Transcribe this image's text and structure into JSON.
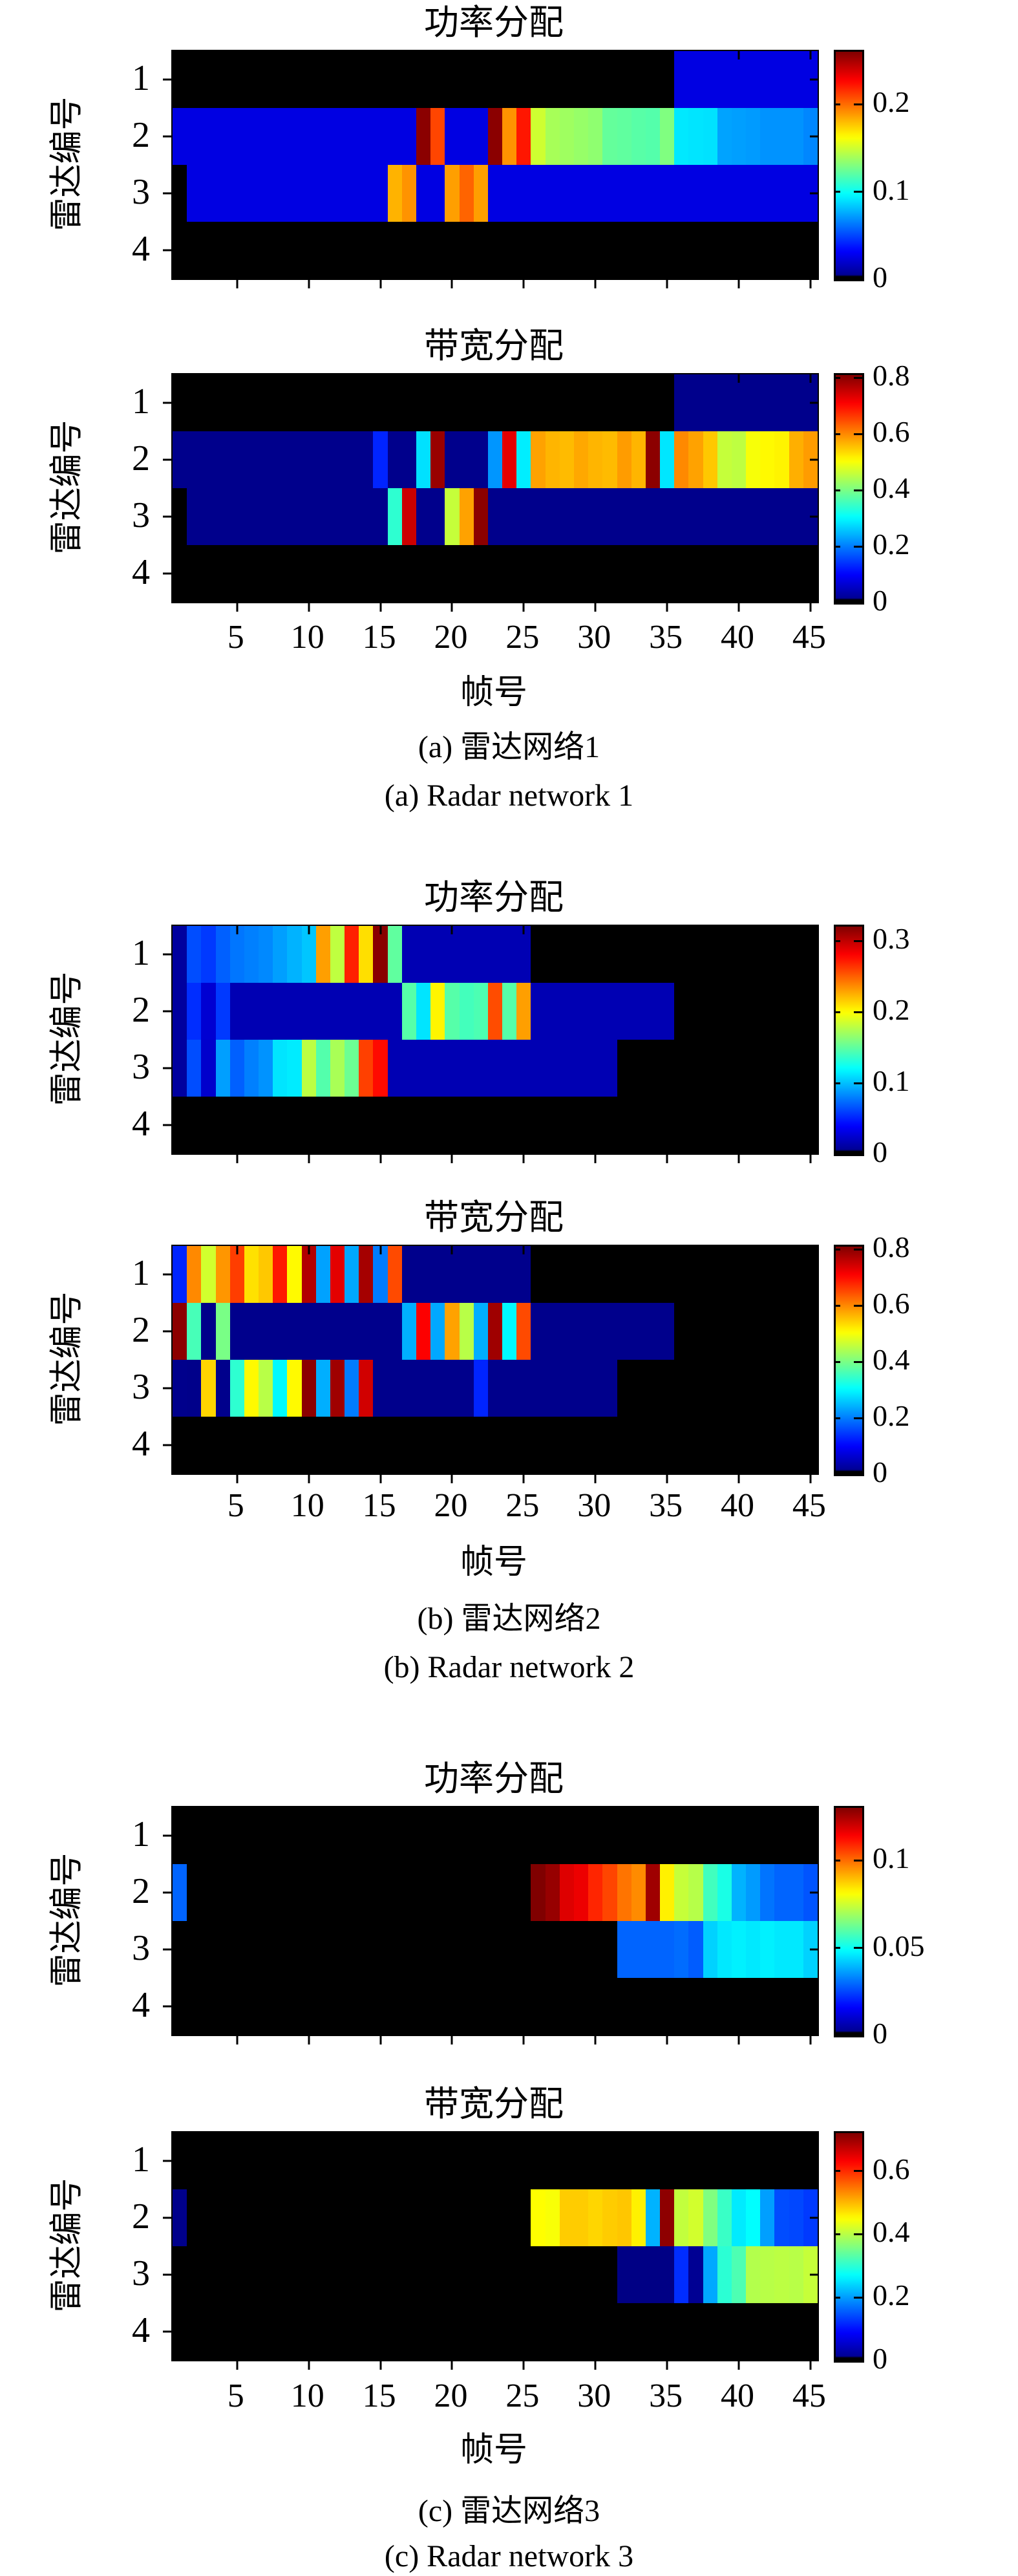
{
  "figure": {
    "ylabel": "雷达编号",
    "xlabel": "帧号",
    "ytick_labels": [
      "1",
      "2",
      "3",
      "4"
    ],
    "xtick_labels": [
      "5",
      "10",
      "15",
      "20",
      "25",
      "30",
      "35",
      "40",
      "45"
    ],
    "groups": [
      {
        "caption_zh": "(a) 雷达网络1",
        "caption_en": "(a) Radar network 1"
      },
      {
        "caption_zh": "(b) 雷达网络2",
        "caption_en": "(b) Radar network 2"
      },
      {
        "caption_zh": "(c) 雷达网络3",
        "caption_en": "(c) Radar network 3"
      }
    ]
  },
  "chart_data": [
    {
      "type": "heatmap",
      "group": "a",
      "title": "功率分配",
      "xlabel": "帧号",
      "ylabel": "雷达编号",
      "x_range": [
        1,
        45
      ],
      "y_categories": [
        "1",
        "2",
        "3",
        "4"
      ],
      "colormap": "jet-black-zero",
      "vmax": 0.26,
      "colorbar_ticks": [
        0,
        0.1,
        0.2
      ],
      "values": [
        [
          0,
          0,
          0,
          0,
          0,
          0,
          0,
          0,
          0,
          0,
          0,
          0,
          0,
          0,
          0,
          0,
          0,
          0,
          0,
          0,
          0,
          0,
          0,
          0,
          0,
          0,
          0,
          0,
          0,
          0,
          0,
          0,
          0,
          0,
          0,
          0.025,
          0.025,
          0.025,
          0.025,
          0.025,
          0.025,
          0.025,
          0.025,
          0.025,
          0.025
        ],
        [
          0.025,
          0.025,
          0.025,
          0.025,
          0.025,
          0.025,
          0.025,
          0.025,
          0.025,
          0.025,
          0.025,
          0.025,
          0.025,
          0.025,
          0.025,
          0.025,
          0.025,
          0.257,
          0.21,
          0.025,
          0.025,
          0.025,
          0.257,
          0.19,
          0.222,
          0.15,
          0.14,
          0.138,
          0.136,
          0.134,
          0.123,
          0.122,
          0.12,
          0.119,
          0.13,
          0.092,
          0.091,
          0.09,
          0.074,
          0.073,
          0.072,
          0.07,
          0.07,
          0.07,
          0.067
        ],
        [
          0,
          0.025,
          0.025,
          0.025,
          0.025,
          0.025,
          0.025,
          0.025,
          0.025,
          0.025,
          0.025,
          0.025,
          0.025,
          0.025,
          0.025,
          0.182,
          0.19,
          0.025,
          0.025,
          0.187,
          0.202,
          0.187,
          0.025,
          0.025,
          0.025,
          0.025,
          0.025,
          0.025,
          0.025,
          0.025,
          0.025,
          0.025,
          0.025,
          0.025,
          0.025,
          0.025,
          0.025,
          0.025,
          0.025,
          0.025,
          0.025,
          0.025,
          0.025,
          0.025,
          0.025
        ],
        [
          0,
          0,
          0,
          0,
          0,
          0,
          0,
          0,
          0,
          0,
          0,
          0,
          0,
          0,
          0,
          0,
          0,
          0,
          0,
          0,
          0,
          0,
          0,
          0,
          0,
          0,
          0,
          0,
          0,
          0,
          0,
          0,
          0,
          0,
          0,
          0,
          0,
          0,
          0,
          0,
          0,
          0,
          0,
          0,
          0
        ]
      ]
    },
    {
      "type": "heatmap",
      "group": "a",
      "title": "带宽分配",
      "xlabel": "帧号",
      "ylabel": "雷达编号",
      "x_range": [
        1,
        45
      ],
      "y_categories": [
        "1",
        "2",
        "3",
        "4"
      ],
      "colormap": "jet-black-zero",
      "vmax": 0.81,
      "colorbar_ticks": [
        0,
        0.2,
        0.4,
        0.6,
        0.8
      ],
      "values": [
        [
          0,
          0,
          0,
          0,
          0,
          0,
          0,
          0,
          0,
          0,
          0,
          0,
          0,
          0,
          0,
          0,
          0,
          0,
          0,
          0,
          0,
          0,
          0,
          0,
          0,
          0,
          0,
          0,
          0,
          0,
          0,
          0,
          0,
          0,
          0,
          0.01,
          0.01,
          0.01,
          0.01,
          0.01,
          0.01,
          0.01,
          0.01,
          0.01,
          0.01
        ],
        [
          0.01,
          0.01,
          0.01,
          0.01,
          0.01,
          0.01,
          0.01,
          0.01,
          0.01,
          0.01,
          0.01,
          0.01,
          0.01,
          0.01,
          0.13,
          0.01,
          0.01,
          0.28,
          0.79,
          0.01,
          0.01,
          0.01,
          0.22,
          0.73,
          0.29,
          0.58,
          0.565,
          0.56,
          0.575,
          0.565,
          0.56,
          0.585,
          0.565,
          0.8,
          0.285,
          0.6,
          0.58,
          0.55,
          0.46,
          0.455,
          0.5,
          0.51,
          0.515,
          0.57,
          0.585
        ],
        [
          0,
          0.01,
          0.01,
          0.01,
          0.01,
          0.01,
          0.01,
          0.01,
          0.01,
          0.01,
          0.01,
          0.01,
          0.01,
          0.01,
          0.01,
          0.34,
          0.75,
          0.01,
          0.01,
          0.46,
          0.58,
          0.8,
          0.01,
          0.01,
          0.01,
          0.01,
          0.01,
          0.01,
          0.01,
          0.01,
          0.01,
          0.01,
          0.01,
          0.01,
          0.01,
          0.01,
          0.01,
          0.01,
          0.01,
          0.01,
          0.01,
          0.01,
          0.01,
          0.01,
          0.01
        ],
        [
          0,
          0,
          0,
          0,
          0,
          0,
          0,
          0,
          0,
          0,
          0,
          0,
          0,
          0,
          0,
          0,
          0,
          0,
          0,
          0,
          0,
          0,
          0,
          0,
          0,
          0,
          0,
          0,
          0,
          0,
          0,
          0,
          0,
          0,
          0,
          0,
          0,
          0,
          0,
          0,
          0,
          0,
          0,
          0,
          0
        ]
      ]
    },
    {
      "type": "heatmap",
      "group": "b",
      "title": "功率分配",
      "xlabel": "帧号",
      "ylabel": "雷达编号",
      "x_range": [
        1,
        45
      ],
      "y_categories": [
        "1",
        "2",
        "3",
        "4"
      ],
      "colormap": "jet-black-zero",
      "vmax": 0.32,
      "colorbar_ticks": [
        0,
        0.1,
        0.2,
        0.3
      ],
      "values": [
        [
          0.01,
          0.064,
          0.058,
          0.07,
          0.077,
          0.08,
          0.083,
          0.09,
          0.096,
          0.102,
          0.23,
          0.18,
          0.27,
          0.21,
          0.317,
          0.15,
          0.016,
          0.016,
          0.016,
          0.016,
          0.016,
          0.016,
          0.016,
          0.016,
          0.016,
          0,
          0,
          0,
          0,
          0,
          0,
          0,
          0,
          0,
          0,
          0,
          0,
          0,
          0,
          0,
          0,
          0,
          0,
          0,
          0
        ],
        [
          0.01,
          0.054,
          0.026,
          0.058,
          0.016,
          0.016,
          0.016,
          0.016,
          0.016,
          0.016,
          0.016,
          0.016,
          0.016,
          0.016,
          0.016,
          0.016,
          0.147,
          0.112,
          0.203,
          0.147,
          0.141,
          0.144,
          0.256,
          0.147,
          0.23,
          0.016,
          0.016,
          0.016,
          0.016,
          0.016,
          0.016,
          0.016,
          0.016,
          0.016,
          0.016,
          0,
          0,
          0,
          0,
          0,
          0,
          0,
          0,
          0,
          0
        ],
        [
          0.01,
          0.064,
          0.024,
          0.09,
          0.07,
          0.08,
          0.086,
          0.112,
          0.114,
          0.179,
          0.146,
          0.173,
          0.154,
          0.26,
          0.277,
          0.016,
          0.016,
          0.016,
          0.016,
          0.016,
          0.016,
          0.016,
          0.016,
          0.016,
          0.016,
          0.016,
          0.016,
          0.016,
          0.016,
          0.016,
          0.016,
          0,
          0,
          0,
          0,
          0,
          0,
          0,
          0,
          0,
          0,
          0,
          0,
          0,
          0
        ],
        [
          0,
          0,
          0,
          0,
          0,
          0,
          0,
          0,
          0,
          0,
          0,
          0,
          0,
          0,
          0,
          0,
          0,
          0,
          0,
          0,
          0,
          0,
          0,
          0,
          0,
          0,
          0,
          0,
          0,
          0,
          0,
          0,
          0,
          0,
          0,
          0,
          0,
          0,
          0,
          0,
          0,
          0,
          0,
          0,
          0
        ]
      ]
    },
    {
      "type": "heatmap",
      "group": "b",
      "title": "带宽分配",
      "xlabel": "帧号",
      "ylabel": "雷达编号",
      "x_range": [
        1,
        45
      ],
      "y_categories": [
        "1",
        "2",
        "3",
        "4"
      ],
      "colormap": "jet-black-zero",
      "vmax": 0.81,
      "colorbar_ticks": [
        0,
        0.2,
        0.4,
        0.6,
        0.8
      ],
      "values": [
        [
          0.13,
          0.6,
          0.47,
          0.59,
          0.66,
          0.53,
          0.55,
          0.69,
          0.51,
          0.77,
          0.23,
          0.73,
          0.235,
          0.78,
          0.2,
          0.65,
          0.01,
          0.01,
          0.01,
          0.01,
          0.01,
          0.01,
          0.01,
          0.01,
          0.01,
          0,
          0,
          0,
          0,
          0,
          0,
          0,
          0,
          0,
          0,
          0,
          0,
          0,
          0,
          0,
          0,
          0,
          0,
          0,
          0
        ],
        [
          0.8,
          0.36,
          0.008,
          0.4,
          0.01,
          0.01,
          0.01,
          0.01,
          0.01,
          0.01,
          0.01,
          0.01,
          0.01,
          0.01,
          0.01,
          0.01,
          0.24,
          0.71,
          0.235,
          0.58,
          0.45,
          0.24,
          0.785,
          0.3,
          0.65,
          0.01,
          0.01,
          0.01,
          0.01,
          0.01,
          0.01,
          0.01,
          0.01,
          0.01,
          0.01,
          0,
          0,
          0,
          0,
          0,
          0,
          0,
          0,
          0,
          0
        ],
        [
          0.01,
          0.008,
          0.54,
          0.01,
          0.34,
          0.51,
          0.45,
          0.3,
          0.51,
          0.8,
          0.24,
          0.785,
          0.2,
          0.745,
          0.01,
          0.01,
          0.01,
          0.01,
          0.01,
          0.01,
          0.01,
          0.13,
          0.01,
          0.01,
          0.01,
          0.01,
          0.01,
          0.01,
          0.01,
          0.01,
          0.01,
          0,
          0,
          0,
          0,
          0,
          0,
          0,
          0,
          0,
          0,
          0,
          0,
          0,
          0
        ],
        [
          0,
          0,
          0,
          0,
          0,
          0,
          0,
          0,
          0,
          0,
          0,
          0,
          0,
          0,
          0,
          0,
          0,
          0,
          0,
          0,
          0,
          0,
          0,
          0,
          0,
          0,
          0,
          0,
          0,
          0,
          0,
          0,
          0,
          0,
          0,
          0,
          0,
          0,
          0,
          0,
          0,
          0,
          0,
          0,
          0
        ]
      ]
    },
    {
      "type": "heatmap",
      "group": "c",
      "title": "功率分配",
      "xlabel": "帧号",
      "ylabel": "雷达编号",
      "x_range": [
        1,
        45
      ],
      "y_categories": [
        "1",
        "2",
        "3",
        "4"
      ],
      "colormap": "jet-black-zero",
      "vmax": 0.13,
      "colorbar_ticks": [
        0,
        0.05,
        0.1
      ],
      "values": [
        [
          0,
          0,
          0,
          0,
          0,
          0,
          0,
          0,
          0,
          0,
          0,
          0,
          0,
          0,
          0,
          0,
          0,
          0,
          0,
          0,
          0,
          0,
          0,
          0,
          0,
          0,
          0,
          0,
          0,
          0,
          0,
          0,
          0,
          0,
          0,
          0,
          0,
          0,
          0,
          0,
          0,
          0,
          0,
          0,
          0
        ],
        [
          0.029,
          0,
          0,
          0,
          0,
          0,
          0,
          0,
          0,
          0,
          0,
          0,
          0,
          0,
          0,
          0,
          0,
          0,
          0,
          0,
          0,
          0,
          0,
          0,
          0,
          0.13,
          0.127,
          0.118,
          0.116,
          0.109,
          0.105,
          0.099,
          0.096,
          0.126,
          0.083,
          0.074,
          0.072,
          0.057,
          0.052,
          0.039,
          0.036,
          0.031,
          0.029,
          0.029,
          0.027
        ],
        [
          0,
          0,
          0,
          0,
          0,
          0,
          0,
          0,
          0,
          0,
          0,
          0,
          0,
          0,
          0,
          0,
          0,
          0,
          0,
          0,
          0,
          0,
          0,
          0,
          0,
          0,
          0,
          0,
          0,
          0,
          0,
          0.029,
          0.029,
          0.029,
          0.029,
          0.03,
          0.028,
          0.043,
          0.046,
          0.047,
          0.046,
          0.047,
          0.046,
          0.046,
          0.043
        ],
        [
          0,
          0,
          0,
          0,
          0,
          0,
          0,
          0,
          0,
          0,
          0,
          0,
          0,
          0,
          0,
          0,
          0,
          0,
          0,
          0,
          0,
          0,
          0,
          0,
          0,
          0,
          0,
          0,
          0,
          0,
          0,
          0,
          0,
          0,
          0,
          0,
          0,
          0,
          0,
          0,
          0,
          0,
          0,
          0,
          0
        ]
      ]
    },
    {
      "type": "heatmap",
      "group": "c",
      "title": "带宽分配",
      "xlabel": "帧号",
      "ylabel": "雷达编号",
      "x_range": [
        1,
        45
      ],
      "y_categories": [
        "1",
        "2",
        "3",
        "4"
      ],
      "colormap": "jet-black-zero",
      "vmax": 0.72,
      "colorbar_ticks": [
        0,
        0.2,
        0.4,
        0.6
      ],
      "values": [
        [
          0,
          0,
          0,
          0,
          0,
          0,
          0,
          0,
          0,
          0,
          0,
          0,
          0,
          0,
          0,
          0,
          0,
          0,
          0,
          0,
          0,
          0,
          0,
          0,
          0,
          0,
          0,
          0,
          0,
          0,
          0,
          0,
          0,
          0,
          0,
          0,
          0,
          0,
          0,
          0,
          0,
          0,
          0,
          0,
          0
        ],
        [
          0.008,
          0,
          0,
          0,
          0,
          0,
          0,
          0,
          0,
          0,
          0,
          0,
          0,
          0,
          0,
          0,
          0,
          0,
          0,
          0,
          0,
          0,
          0,
          0,
          0,
          0.45,
          0.446,
          0.486,
          0.486,
          0.479,
          0.486,
          0.49,
          0.46,
          0.216,
          0.71,
          0.407,
          0.418,
          0.36,
          0.31,
          0.256,
          0.27,
          0.202,
          0.144,
          0.14,
          0.13
        ],
        [
          0,
          0,
          0,
          0,
          0,
          0,
          0,
          0,
          0,
          0,
          0,
          0,
          0,
          0,
          0,
          0,
          0,
          0,
          0,
          0,
          0,
          0,
          0,
          0,
          0,
          0,
          0,
          0,
          0,
          0,
          0,
          0.004,
          0.004,
          0.004,
          0.004,
          0.122,
          0.014,
          0.209,
          0.3,
          0.324,
          0.396,
          0.4,
          0.403,
          0.4,
          0.41
        ],
        [
          0,
          0,
          0,
          0,
          0,
          0,
          0,
          0,
          0,
          0,
          0,
          0,
          0,
          0,
          0,
          0,
          0,
          0,
          0,
          0,
          0,
          0,
          0,
          0,
          0,
          0,
          0,
          0,
          0,
          0,
          0,
          0,
          0,
          0,
          0,
          0,
          0,
          0,
          0,
          0,
          0,
          0,
          0,
          0,
          0
        ]
      ]
    }
  ],
  "layout": {
    "panel_tops": [
      7,
      507,
      1360,
      1855,
      2723,
      3226
    ],
    "xtick_row_tops": [
      960,
      2303,
      3680
    ],
    "xlabel_tops": [
      1045,
      2390,
      3763
    ],
    "caption_zh_tops": [
      1128,
      2476,
      3856
    ],
    "caption_en_tops": [
      1203,
      2551,
      3926
    ]
  }
}
